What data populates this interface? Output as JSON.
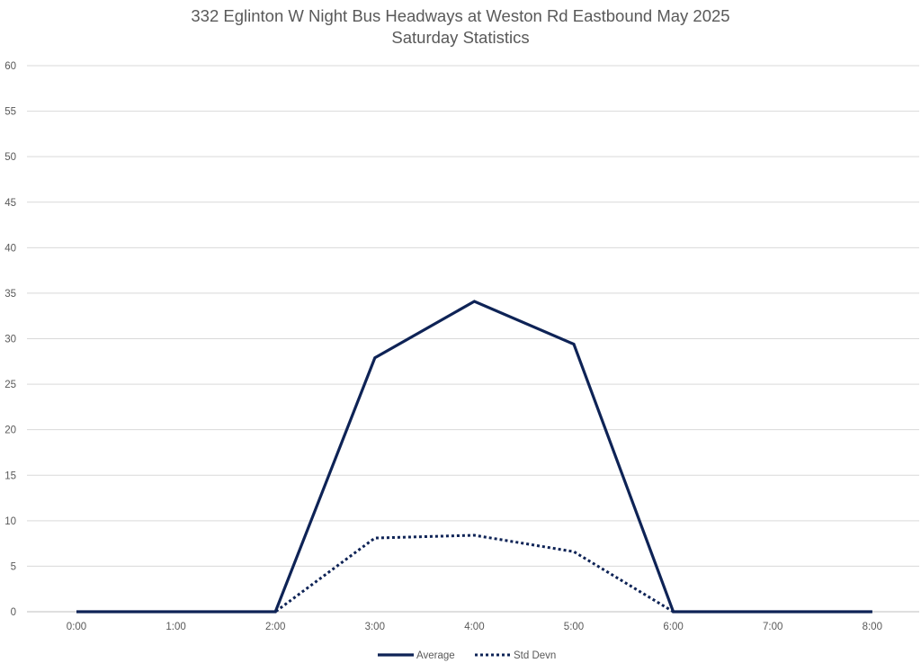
{
  "chart_data": {
    "type": "line",
    "title": "332 Eglinton W Night Bus Headways at Weston Rd Eastbound May 2025",
    "subtitle": "Saturday Statistics",
    "x": [
      "0:00",
      "1:00",
      "2:00",
      "3:00",
      "4:00",
      "5:00",
      "6:00",
      "7:00",
      "8:00"
    ],
    "series": [
      {
        "name": "Average",
        "values": [
          0,
          0,
          0,
          27.9,
          34.1,
          29.4,
          0,
          0,
          0
        ],
        "color": "#0e2356",
        "style": "solid"
      },
      {
        "name": "Std Devn",
        "values": [
          0,
          0,
          0,
          8.1,
          8.4,
          6.6,
          0,
          0,
          0
        ],
        "color": "#0e2356",
        "style": "dotted"
      }
    ],
    "ylim": [
      0,
      60
    ],
    "yticks": [
      0,
      5,
      10,
      15,
      20,
      25,
      30,
      35,
      40,
      45,
      50,
      55,
      60
    ],
    "grid": true,
    "legend_position": "bottom"
  }
}
